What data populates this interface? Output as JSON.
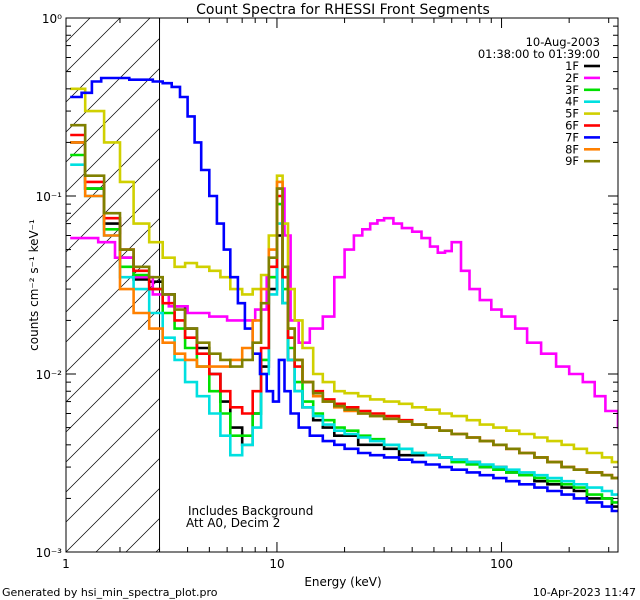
{
  "chart_data": {
    "type": "line",
    "title": "Count Spectra for RHESSI Front Segments",
    "xlabel": "Energy (keV)",
    "ylabel": "counts cm⁻² s⁻¹ keV⁻¹",
    "xscale": "log",
    "yscale": "log",
    "xlim": [
      1.15,
      330
    ],
    "ylim": [
      0.001,
      1
    ],
    "x_ticks": [
      {
        "value": 1,
        "label": "1"
      },
      {
        "value": 10,
        "label": "10"
      },
      {
        "value": 100,
        "label": "100"
      }
    ],
    "y_ticks": [
      {
        "value": 1,
        "label": "10⁰"
      },
      {
        "value": 0.1,
        "label": "10⁻¹"
      },
      {
        "value": 0.01,
        "label": "10⁻²"
      },
      {
        "value": 0.001,
        "label": "10⁻³"
      }
    ],
    "date": "10-Aug-2003",
    "time_range": "01:38:00 to 01:39:00",
    "attenuator_region_max_keV": 3,
    "notes": [
      "Includes Background",
      "Att A0, Decim 2"
    ],
    "footer_left": "Generated by hsi_min_spectra_plot.pro",
    "footer_right": "10-Apr-2023 11:47",
    "series": [
      {
        "name": "1F",
        "color": "#000000",
        "x": [
          1.2,
          1.4,
          1.7,
          2.0,
          2.3,
          2.7,
          3.1,
          3.5,
          3.9,
          4.4,
          5.0,
          5.6,
          6.2,
          7.0,
          7.8,
          8.5,
          9.2,
          10.0,
          10.6,
          11.2,
          12.0,
          13.0,
          14.5,
          16,
          18,
          20,
          23,
          26,
          30,
          35,
          40,
          46,
          53,
          60,
          70,
          80,
          92,
          105,
          120,
          140,
          160,
          185,
          210,
          240,
          280,
          310
        ],
        "y": [
          0.2,
          0.11,
          0.07,
          0.045,
          0.034,
          0.033,
          0.028,
          0.024,
          0.018,
          0.014,
          0.01,
          0.007,
          0.005,
          0.004,
          0.006,
          0.011,
          0.03,
          0.06,
          0.025,
          0.012,
          0.008,
          0.0065,
          0.0055,
          0.005,
          0.0045,
          0.0045,
          0.004,
          0.004,
          0.0038,
          0.0035,
          0.0035,
          0.0035,
          0.0034,
          0.0033,
          0.0032,
          0.003,
          0.003,
          0.0028,
          0.0027,
          0.0025,
          0.0024,
          0.0023,
          0.0022,
          0.002,
          0.002,
          0.0018
        ]
      },
      {
        "name": "2F",
        "color": "#ff00ff",
        "x": [
          1.2,
          1.4,
          1.6,
          1.9,
          2.3,
          2.8,
          3.3,
          4.0,
          5.0,
          6.0,
          7.0,
          8.0,
          9.0,
          10.0,
          10.8,
          11.5,
          12.5,
          14,
          16,
          18,
          20,
          22,
          24,
          26,
          28,
          30,
          33,
          36,
          40,
          44,
          48,
          52,
          56,
          60,
          66,
          72,
          80,
          90,
          100,
          115,
          130,
          150,
          175,
          200,
          230,
          260,
          290,
          330
        ],
        "y": [
          0.058,
          0.058,
          0.055,
          0.045,
          0.035,
          0.028,
          0.024,
          0.022,
          0.021,
          0.02,
          0.02,
          0.023,
          0.035,
          0.11,
          0.06,
          0.02,
          0.015,
          0.018,
          0.021,
          0.035,
          0.05,
          0.06,
          0.065,
          0.07,
          0.073,
          0.075,
          0.07,
          0.066,
          0.063,
          0.058,
          0.052,
          0.048,
          0.049,
          0.055,
          0.038,
          0.03,
          0.026,
          0.023,
          0.021,
          0.018,
          0.015,
          0.013,
          0.011,
          0.01,
          0.009,
          0.0075,
          0.0062,
          0.005
        ]
      },
      {
        "name": "3F",
        "color": "#00e000",
        "x": [
          1.2,
          1.4,
          1.7,
          2.0,
          2.3,
          2.7,
          3.1,
          3.5,
          3.9,
          4.4,
          5.0,
          5.6,
          6.2,
          7.0,
          7.8,
          8.5,
          9.2,
          10.0,
          10.6,
          11.2,
          12.0,
          13.0,
          14.5,
          16,
          18,
          20,
          23,
          26,
          30,
          35,
          40,
          46,
          53,
          60,
          70,
          80,
          92,
          105,
          120,
          140,
          160,
          185,
          210,
          240,
          280,
          310
        ],
        "y": [
          0.17,
          0.11,
          0.065,
          0.04,
          0.036,
          0.03,
          0.022,
          0.018,
          0.014,
          0.011,
          0.008,
          0.006,
          0.0045,
          0.0045,
          0.006,
          0.012,
          0.035,
          0.09,
          0.03,
          0.014,
          0.009,
          0.007,
          0.006,
          0.0055,
          0.005,
          0.0048,
          0.0045,
          0.0043,
          0.004,
          0.0038,
          0.0036,
          0.0035,
          0.0034,
          0.0032,
          0.0031,
          0.003,
          0.0029,
          0.0028,
          0.0027,
          0.0026,
          0.0025,
          0.0024,
          0.0023,
          0.0021,
          0.002,
          0.0019
        ]
      },
      {
        "name": "4F",
        "color": "#00e0e0",
        "x": [
          1.2,
          1.4,
          1.7,
          2.0,
          2.3,
          2.7,
          3.1,
          3.5,
          3.9,
          4.4,
          5.0,
          5.6,
          6.2,
          7.0,
          7.8,
          8.5,
          9.2,
          10.0,
          10.6,
          11.2,
          12.0,
          13.0,
          14.5,
          16,
          18,
          20,
          23,
          26,
          30,
          35,
          40,
          46,
          53,
          60,
          70,
          80,
          92,
          105,
          120,
          140,
          160,
          185,
          210,
          240,
          280,
          310
        ],
        "y": [
          0.15,
          0.1,
          0.06,
          0.035,
          0.03,
          0.022,
          0.016,
          0.012,
          0.009,
          0.0075,
          0.006,
          0.0045,
          0.0035,
          0.004,
          0.005,
          0.01,
          0.028,
          0.07,
          0.025,
          0.012,
          0.008,
          0.0065,
          0.0058,
          0.0052,
          0.0048,
          0.0046,
          0.0044,
          0.0042,
          0.004,
          0.0038,
          0.0036,
          0.0035,
          0.0034,
          0.0033,
          0.0032,
          0.0031,
          0.003,
          0.0029,
          0.0028,
          0.0027,
          0.0026,
          0.0025,
          0.0024,
          0.0023,
          0.0022,
          0.0021
        ]
      },
      {
        "name": "5F",
        "color": "#d0d000",
        "x": [
          1.2,
          1.4,
          1.7,
          2.0,
          2.3,
          2.7,
          3.1,
          3.5,
          3.9,
          4.4,
          5.0,
          5.6,
          6.2,
          7.0,
          7.8,
          8.5,
          9.2,
          10.0,
          10.6,
          11.2,
          12.0,
          13.0,
          14.5,
          16,
          18,
          20,
          23,
          26,
          30,
          35,
          40,
          46,
          53,
          60,
          70,
          80,
          92,
          105,
          120,
          140,
          160,
          185,
          210,
          240,
          280,
          310
        ],
        "y": [
          0.4,
          0.3,
          0.2,
          0.12,
          0.07,
          0.055,
          0.045,
          0.04,
          0.042,
          0.04,
          0.038,
          0.035,
          0.03,
          0.028,
          0.03,
          0.036,
          0.06,
          0.13,
          0.07,
          0.03,
          0.02,
          0.014,
          0.01,
          0.009,
          0.008,
          0.0078,
          0.0075,
          0.0072,
          0.007,
          0.0068,
          0.0065,
          0.0063,
          0.006,
          0.0058,
          0.0055,
          0.0052,
          0.005,
          0.0048,
          0.0046,
          0.0044,
          0.0042,
          0.004,
          0.0038,
          0.0036,
          0.0034,
          0.0032
        ]
      },
      {
        "name": "6F",
        "color": "#ff0000",
        "x": [
          1.2,
          1.4,
          1.7,
          2.0,
          2.3,
          2.7,
          3.1,
          3.5,
          3.9,
          4.4,
          5.0,
          5.6,
          6.2,
          7.0,
          7.8,
          8.5,
          9.2,
          10.0,
          10.6,
          11.2,
          12.0,
          13.0,
          14.5,
          16,
          18,
          20,
          23,
          26,
          30,
          35,
          40,
          46,
          53,
          60,
          70,
          80,
          92,
          105,
          120,
          140,
          160,
          185,
          210,
          240,
          280,
          310
        ],
        "y": [
          0.22,
          0.12,
          0.075,
          0.05,
          0.038,
          0.03,
          0.025,
          0.02,
          0.016,
          0.013,
          0.01,
          0.008,
          0.0065,
          0.006,
          0.008,
          0.014,
          0.04,
          0.1,
          0.035,
          0.016,
          0.011,
          0.009,
          0.008,
          0.0072,
          0.0068,
          0.0065,
          0.0062,
          0.006,
          0.0058,
          0.0055,
          0.0052,
          0.005,
          0.0048,
          0.0046,
          0.0044,
          0.0042,
          0.004,
          0.0038,
          0.0036,
          0.0034,
          0.0032,
          0.003,
          0.0029,
          0.0028,
          0.0027,
          0.0026
        ]
      },
      {
        "name": "7F",
        "color": "#0000ff",
        "x": [
          1.2,
          1.35,
          1.5,
          1.65,
          1.8,
          2.0,
          2.2,
          2.5,
          2.8,
          3.1,
          3.4,
          3.7,
          4.0,
          4.3,
          4.6,
          5.0,
          5.4,
          5.8,
          6.2,
          6.7,
          7.2,
          7.8,
          8.4,
          9.0,
          9.6,
          10.2,
          10.8,
          11.5,
          12.5,
          14,
          16,
          18,
          20,
          23,
          26,
          30,
          35,
          40,
          46,
          53,
          60,
          70,
          80,
          92,
          105,
          120,
          140,
          160,
          185,
          210,
          240,
          280,
          310
        ],
        "y": [
          0.36,
          0.38,
          0.44,
          0.46,
          0.46,
          0.46,
          0.45,
          0.45,
          0.44,
          0.43,
          0.41,
          0.36,
          0.28,
          0.2,
          0.14,
          0.1,
          0.07,
          0.05,
          0.035,
          0.025,
          0.018,
          0.013,
          0.01,
          0.008,
          0.007,
          0.012,
          0.008,
          0.006,
          0.005,
          0.0045,
          0.0042,
          0.004,
          0.0038,
          0.0036,
          0.0035,
          0.0034,
          0.0033,
          0.0032,
          0.0031,
          0.003,
          0.0029,
          0.0028,
          0.0027,
          0.0026,
          0.0025,
          0.0024,
          0.0023,
          0.0022,
          0.0021,
          0.002,
          0.0019,
          0.0018,
          0.0017
        ]
      },
      {
        "name": "8F",
        "color": "#ff8000",
        "x": [
          1.2,
          1.4,
          1.7,
          2.0,
          2.3,
          2.7,
          3.1,
          3.5,
          3.9,
          4.4,
          5.0,
          5.6,
          6.2,
          7.0,
          7.8,
          8.5,
          9.2,
          10.0,
          10.6,
          11.2,
          12.0,
          13.0,
          14.5,
          16,
          18,
          20,
          23,
          26,
          30,
          35,
          40,
          46,
          53,
          60,
          70,
          80,
          92,
          105,
          120,
          140,
          160,
          185,
          210,
          240,
          280,
          310
        ],
        "y": [
          0.2,
          0.1,
          0.06,
          0.03,
          0.022,
          0.018,
          0.015,
          0.013,
          0.012,
          0.011,
          0.011,
          0.011,
          0.012,
          0.014,
          0.02,
          0.03,
          0.05,
          0.12,
          0.04,
          0.018,
          0.012,
          0.009,
          0.0075,
          0.007,
          0.0065,
          0.0062,
          0.006,
          0.0058,
          0.0056,
          0.0054,
          0.0052,
          0.005,
          0.0048,
          0.0046,
          0.0044,
          0.0042,
          0.004,
          0.0038,
          0.0036,
          0.0034,
          0.0032,
          0.003,
          0.0029,
          0.0028,
          0.0027,
          0.0026
        ]
      },
      {
        "name": "9F",
        "color": "#808000",
        "x": [
          1.2,
          1.4,
          1.7,
          2.0,
          2.3,
          2.7,
          3.1,
          3.5,
          3.9,
          4.4,
          5.0,
          5.6,
          6.2,
          7.0,
          7.8,
          8.5,
          9.2,
          10.0,
          10.6,
          11.2,
          12.0,
          13.0,
          14.5,
          16,
          18,
          20,
          23,
          26,
          30,
          35,
          40,
          46,
          53,
          60,
          70,
          80,
          92,
          105,
          120,
          140,
          160,
          185,
          210,
          240,
          280,
          310
        ],
        "y": [
          0.25,
          0.13,
          0.08,
          0.05,
          0.04,
          0.035,
          0.028,
          0.023,
          0.018,
          0.015,
          0.013,
          0.012,
          0.011,
          0.012,
          0.015,
          0.025,
          0.045,
          0.11,
          0.04,
          0.018,
          0.012,
          0.009,
          0.0078,
          0.007,
          0.0066,
          0.0063,
          0.006,
          0.0058,
          0.0056,
          0.0054,
          0.0052,
          0.005,
          0.0048,
          0.0046,
          0.0044,
          0.0042,
          0.004,
          0.0038,
          0.0036,
          0.0034,
          0.0032,
          0.003,
          0.0029,
          0.0028,
          0.0027,
          0.0026
        ]
      }
    ]
  }
}
